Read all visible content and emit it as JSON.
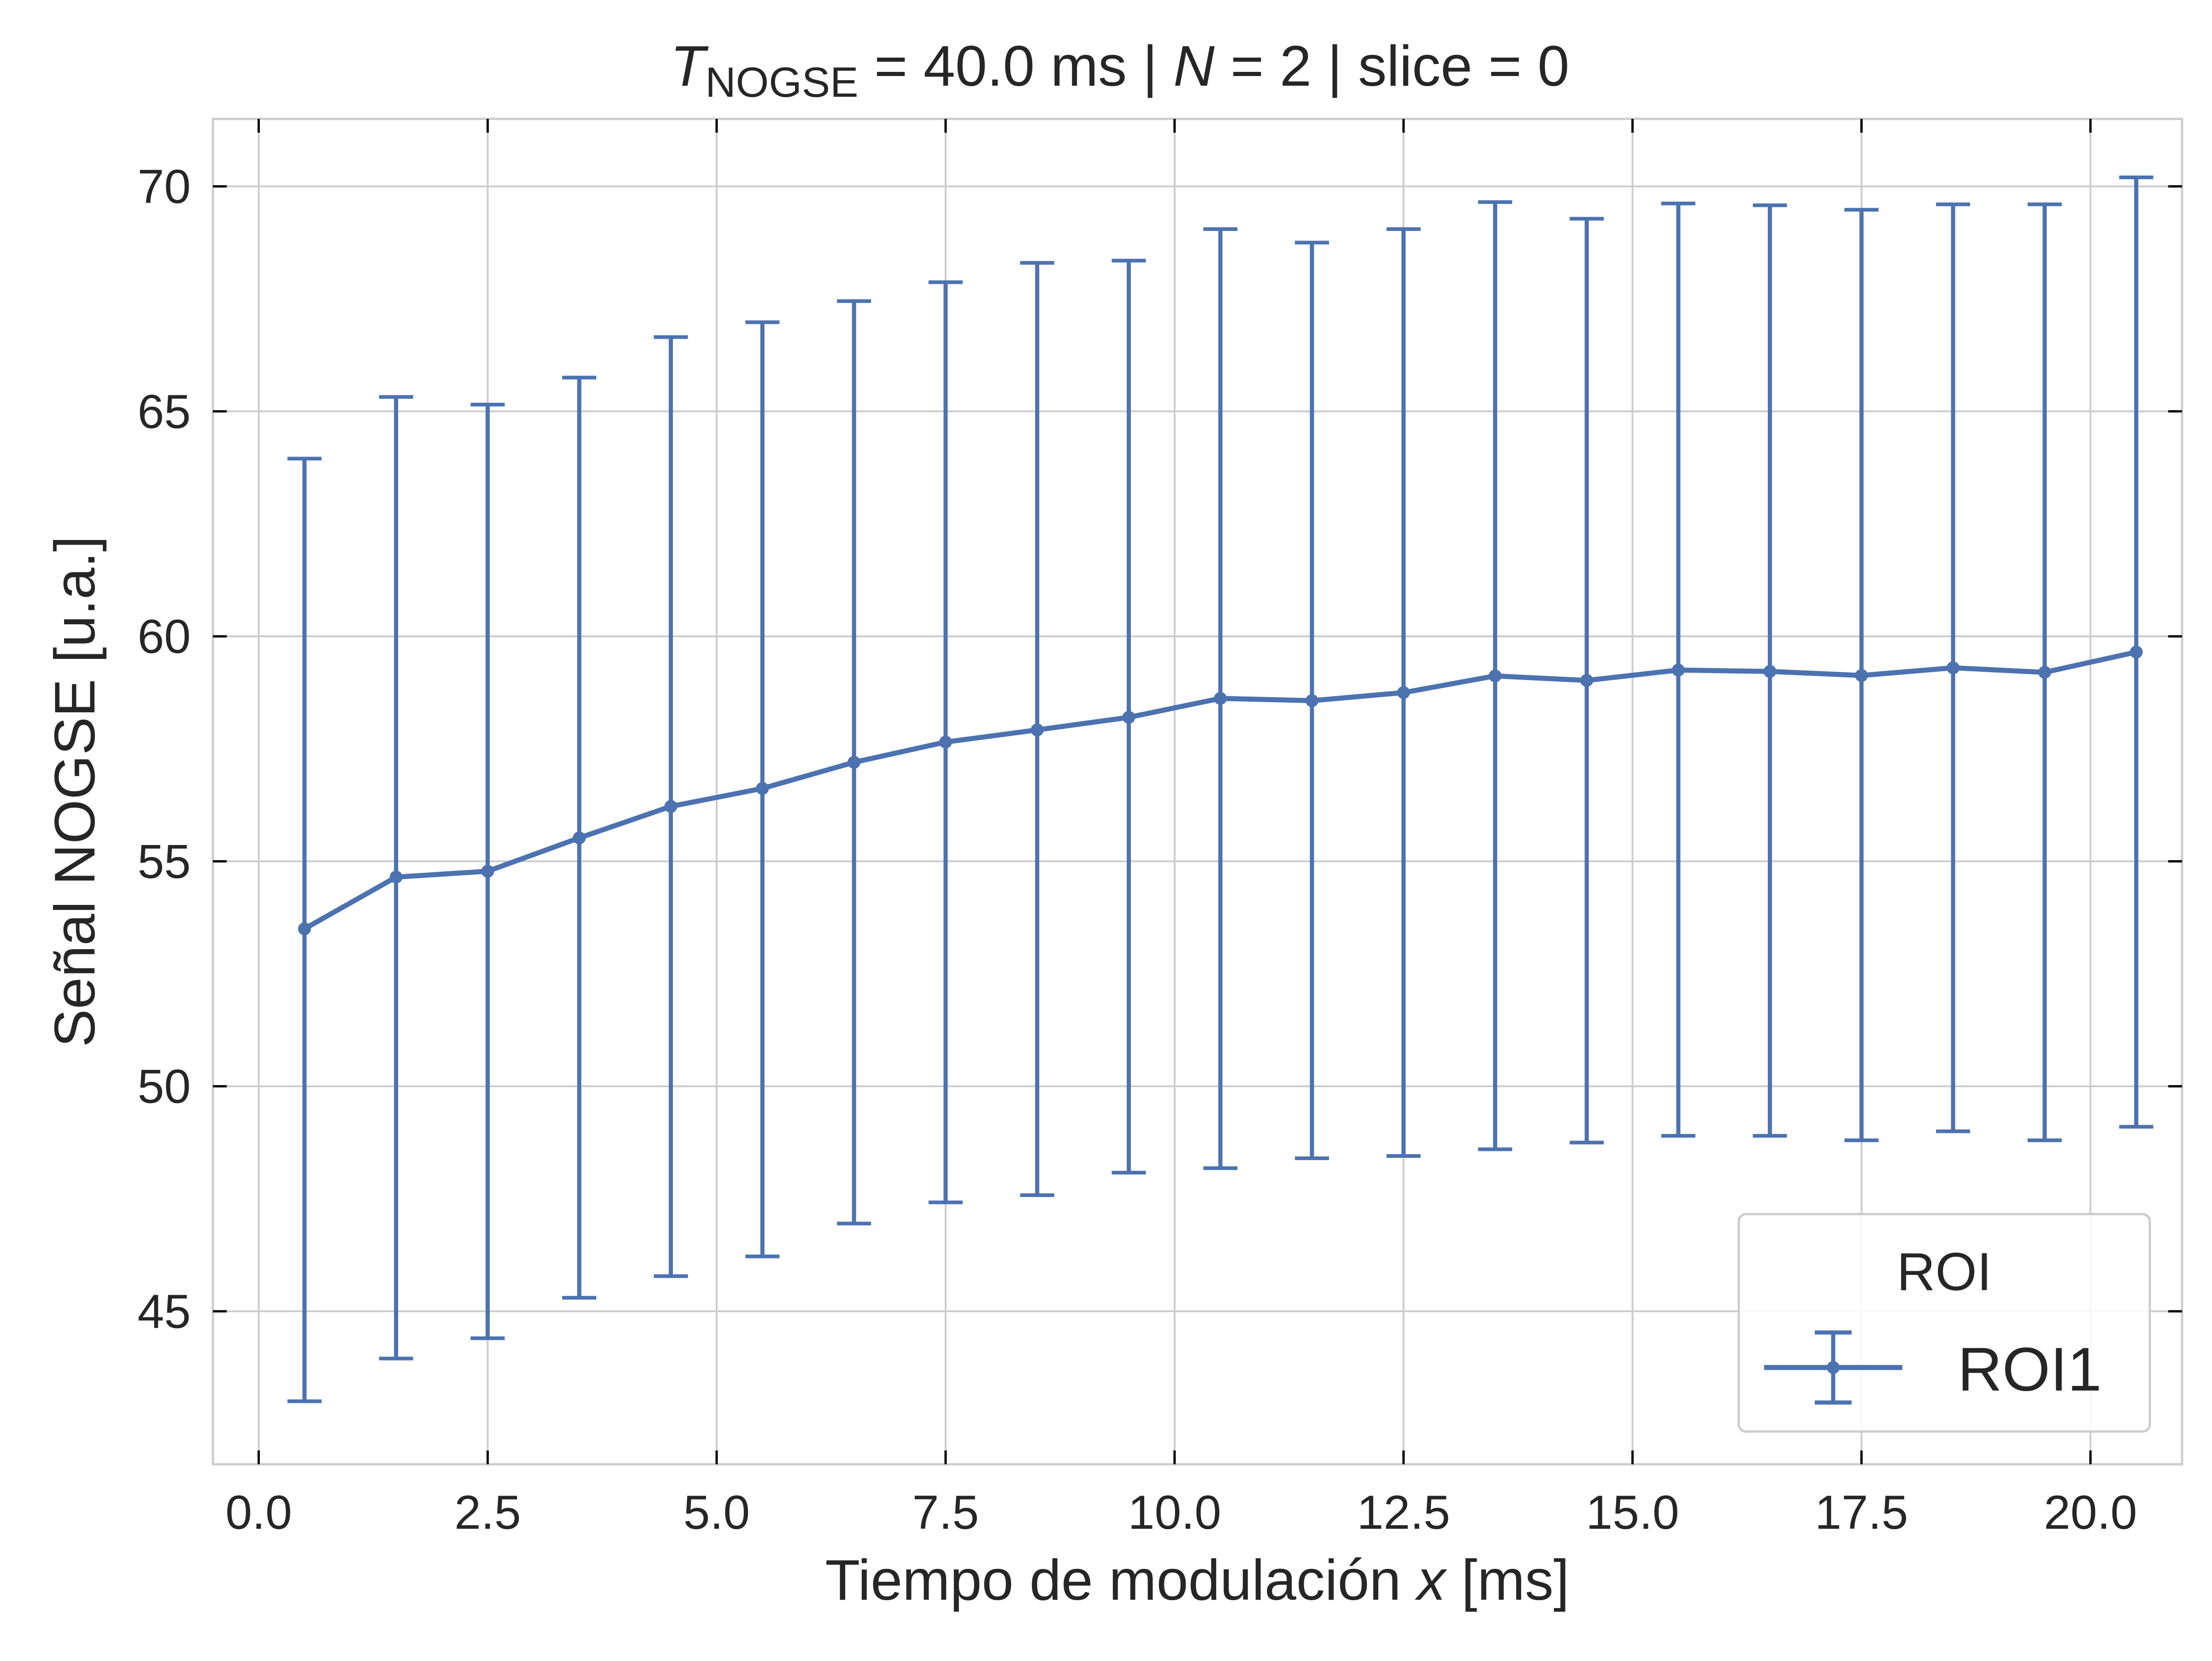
{
  "colors": {
    "series": "#4c72b0",
    "grid": "#cccccc",
    "axes": "#cccccc",
    "tick": "#000000",
    "text": "#262626"
  },
  "chart_data": {
    "type": "line",
    "title_parts": {
      "t_symbol": "T",
      "t_subscript": "NOGSE",
      "rest1": " = 40.0 ms | ",
      "n_symbol": "N",
      "rest2": " = 2 | slice = 0"
    },
    "xlabel_parts": {
      "text": "Tiempo de modulación ",
      "var": "x",
      "unit": " [ms]"
    },
    "ylabel": "Señal NOGSE [u.a.]",
    "xlim": [
      -0.5,
      21.0
    ],
    "ylim": [
      41.6,
      71.5
    ],
    "xticks": [
      0.0,
      2.5,
      5.0,
      7.5,
      10.0,
      12.5,
      15.0,
      17.5,
      20.0
    ],
    "xtick_labels": [
      "0.0",
      "2.5",
      "5.0",
      "7.5",
      "10.0",
      "12.5",
      "15.0",
      "17.5",
      "20.0"
    ],
    "yticks": [
      45,
      50,
      55,
      60,
      65,
      70
    ],
    "ytick_labels": [
      "45",
      "50",
      "55",
      "60",
      "65",
      "70"
    ],
    "grid": true,
    "legend": {
      "title": "ROI",
      "position": "bottom-right"
    },
    "series": [
      {
        "name": "ROI1",
        "error_bars": true,
        "x": [
          0.5,
          1.5,
          2.5,
          3.5,
          4.5,
          5.5,
          6.5,
          7.5,
          8.5,
          9.5,
          10.5,
          11.5,
          12.5,
          13.5,
          14.5,
          15.5,
          16.5,
          17.5,
          18.5,
          19.5,
          20.5
        ],
        "y": [
          53.5,
          54.65,
          54.78,
          55.52,
          56.22,
          56.62,
          57.2,
          57.65,
          57.92,
          58.2,
          58.62,
          58.57,
          58.75,
          59.12,
          59.02,
          59.25,
          59.22,
          59.13,
          59.3,
          59.2,
          59.65
        ],
        "error_low": [
          43.0,
          43.95,
          44.4,
          45.3,
          45.78,
          46.22,
          46.95,
          47.42,
          47.58,
          48.08,
          48.18,
          48.4,
          48.45,
          48.6,
          48.75,
          48.9,
          48.9,
          48.8,
          49.0,
          48.8,
          49.1
        ],
        "error_high": [
          63.95,
          65.32,
          65.15,
          65.75,
          66.65,
          66.98,
          67.45,
          67.87,
          68.3,
          68.35,
          69.05,
          68.75,
          69.05,
          69.65,
          69.28,
          69.62,
          69.58,
          69.48,
          69.6,
          69.6,
          70.2
        ]
      }
    ]
  }
}
